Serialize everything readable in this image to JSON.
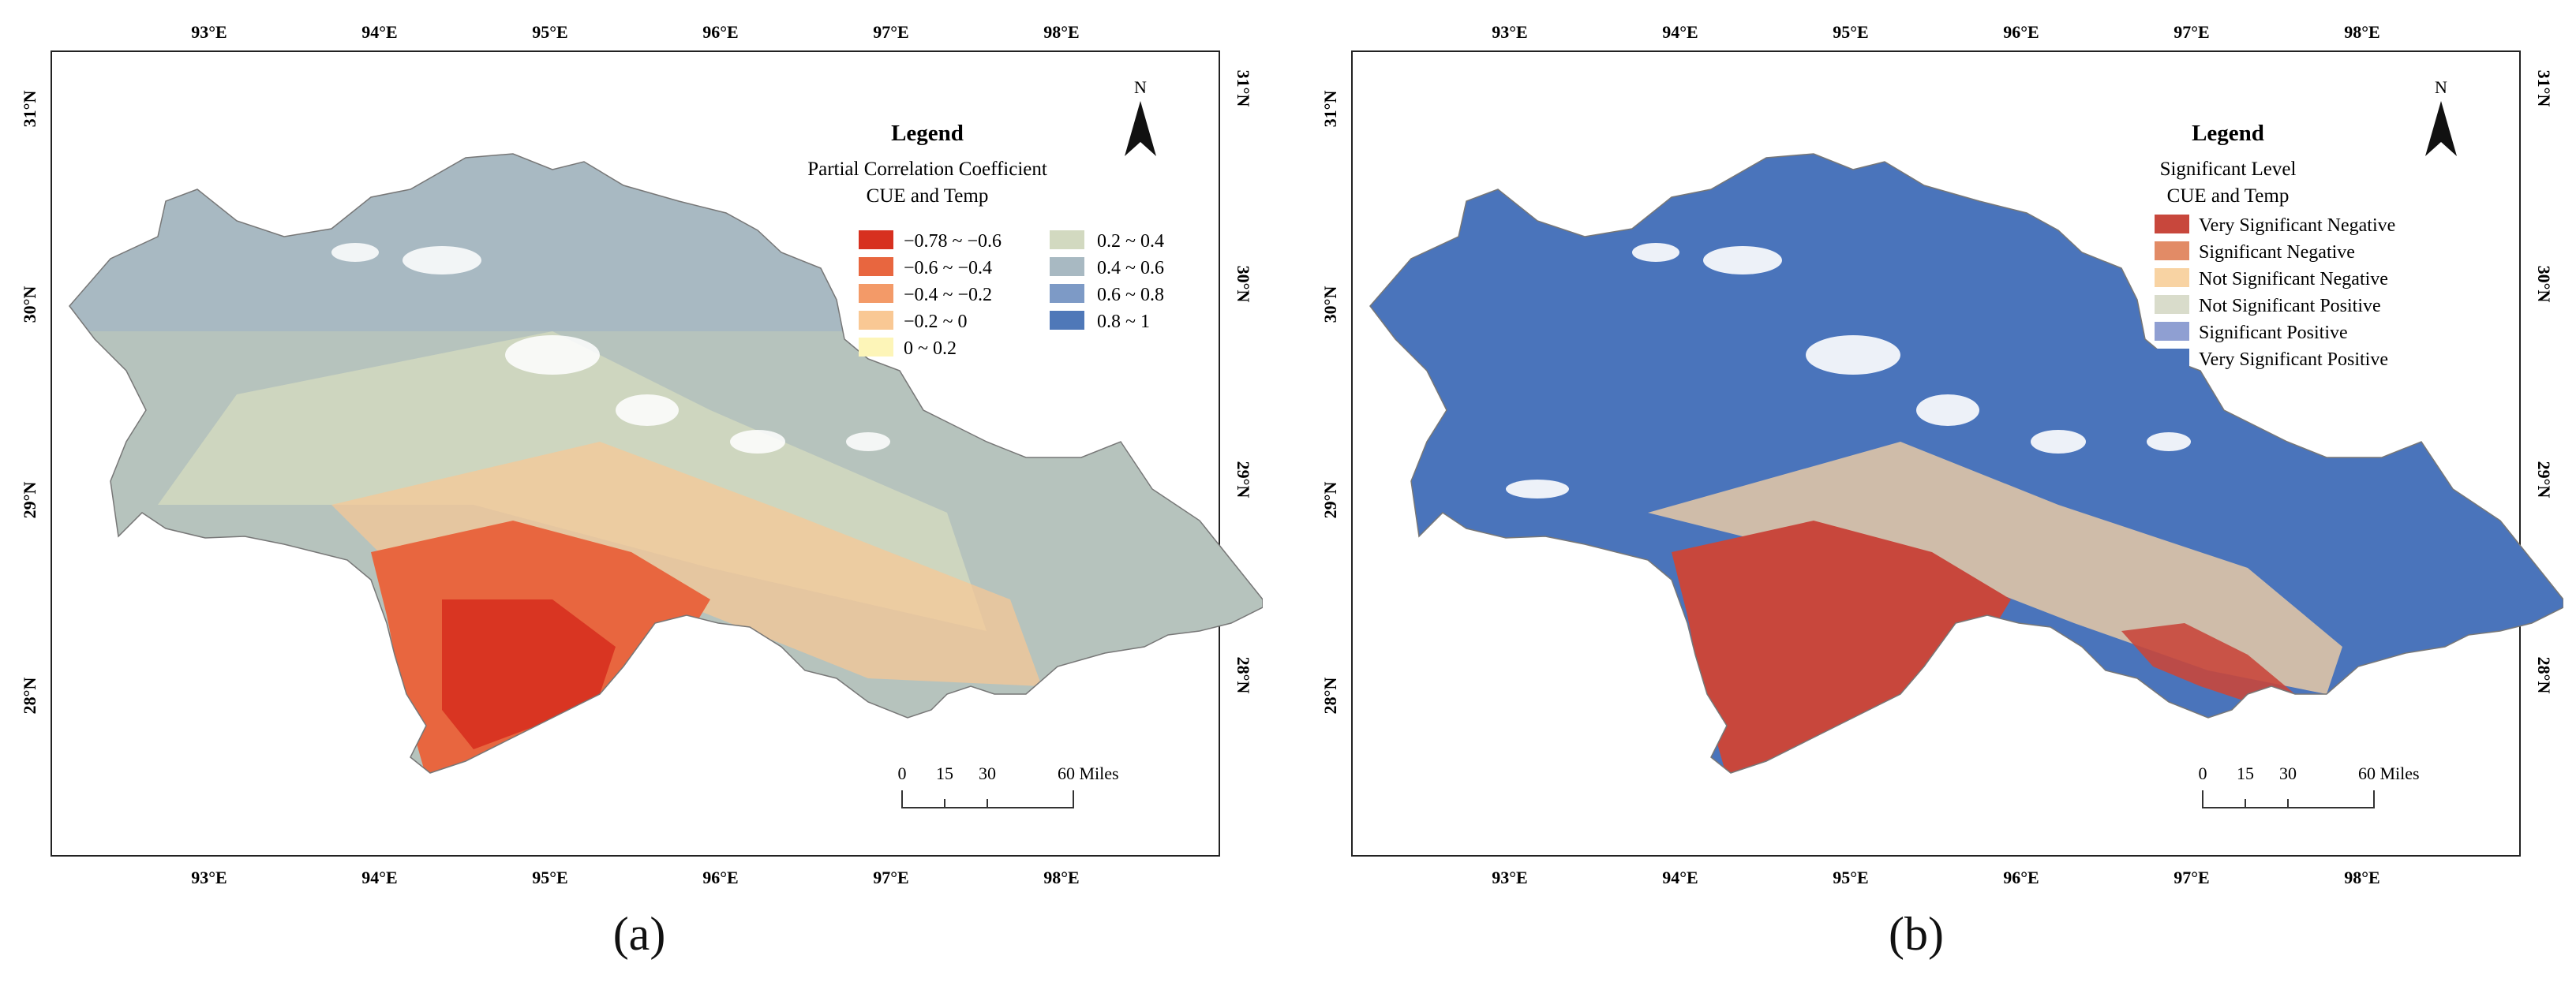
{
  "panels": [
    {
      "id": "a",
      "caption": "(a)",
      "legend": {
        "heading": "Legend",
        "subtitle_1": "Partial Correlation Coefficient",
        "subtitle_2": "CUE and Temp",
        "classes_left": [
          {
            "label": "−0.78 ~ −0.6",
            "color": "#d7301f"
          },
          {
            "label": "−0.6 ~ −0.4",
            "color": "#e8663f"
          },
          {
            "label": "−0.4 ~ −0.2",
            "color": "#f39a68"
          },
          {
            "label": "−0.2 ~ 0",
            "color": "#f9c894"
          },
          {
            "label": "0 ~ 0.2",
            "color": "#fdf5b8"
          }
        ],
        "classes_right": [
          {
            "label": "0.2 ~ 0.4",
            "color": "#d2d9c0"
          },
          {
            "label": "0.4 ~ 0.6",
            "color": "#a8b9c2"
          },
          {
            "label": "0.6 ~ 0.8",
            "color": "#7d9ac6"
          },
          {
            "label": "0.8 ~ 1",
            "color": "#4f78b8"
          }
        ]
      },
      "colors": {
        "base": "#b6c3bd",
        "north": "#a8b9c2",
        "mid": "#d2d9c0",
        "south": "#e8663f",
        "south_deep": "#d7301f",
        "transition": "#f9c894"
      }
    },
    {
      "id": "b",
      "caption": "(b)",
      "legend": {
        "heading": "Legend",
        "subtitle_1": "Significant Level",
        "subtitle_2": "CUE and Temp",
        "classes": [
          {
            "label": "Very Significant Negative",
            "color": "#c8473c"
          },
          {
            "label": "Significant Negative",
            "color": "#e28b66"
          },
          {
            "label": "Not Significant Negative",
            "color": "#f8d3a3"
          },
          {
            "label": "Not Significant Positive",
            "color": "#d9dccb"
          },
          {
            "label": "Significant Positive",
            "color": "#8f9fd2"
          },
          {
            "label": "Very Significant Positive",
            "color": "#4a74bb"
          }
        ]
      },
      "colors": {
        "base": "#4a74bb",
        "south": "#c8473c",
        "transition": "#e6c9a6"
      }
    }
  ],
  "graticule": {
    "longitudes": [
      "93°E",
      "94°E",
      "95°E",
      "96°E",
      "97°E",
      "98°E"
    ],
    "latitudes": [
      "31°N",
      "30°N",
      "29°N",
      "28°N"
    ]
  },
  "north_arrow": "N",
  "scale_bar": {
    "ticks": [
      "0",
      "15",
      "30",
      "60 Miles"
    ]
  }
}
